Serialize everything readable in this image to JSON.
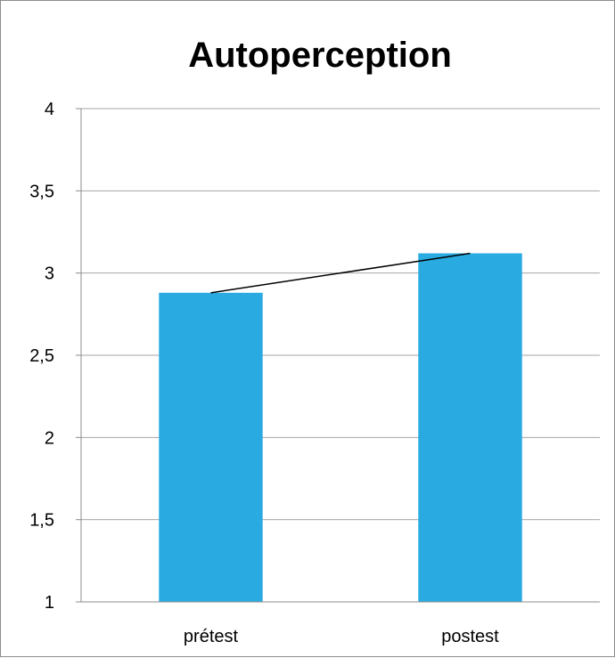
{
  "chart_data": {
    "type": "bar",
    "title": "Autoperception",
    "categories": [
      "prétest",
      "postest"
    ],
    "values": [
      2.88,
      3.12
    ],
    "ylim": [
      1,
      4
    ],
    "yticks": [
      1,
      1.5,
      2,
      2.5,
      3,
      3.5,
      4
    ],
    "ytick_labels": [
      "1",
      "1,5",
      "2",
      "2,5",
      "3",
      "3,5",
      "4"
    ],
    "xlabel": "",
    "ylabel": "",
    "grid": true,
    "trend_line": true,
    "colors": {
      "bar": "#29abe2",
      "grid": "#a6a6a6",
      "axis": "#8c8c8c",
      "trend": "#000000"
    }
  }
}
